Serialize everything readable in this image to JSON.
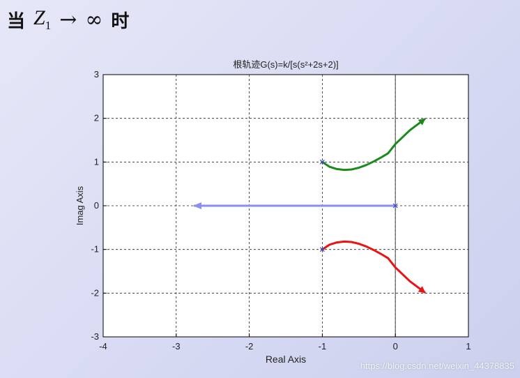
{
  "heading": {
    "prefix": "当",
    "variable": "Z",
    "subscript": "1",
    "arrow": "→",
    "infinity": "∞",
    "suffix": "时"
  },
  "watermark": "https://blog.csdn.net/weixin_44378835",
  "chart_data": {
    "type": "line",
    "title": "根轨迹G(s)=k/[s(s²+2s+2)]",
    "xlabel": "Real Axis",
    "ylabel": "Imag Axis",
    "xlim": [
      -4,
      1
    ],
    "ylim": [
      -3,
      3
    ],
    "xticks": [
      -4,
      -3,
      -2,
      -1,
      0,
      1
    ],
    "yticks": [
      -3,
      -2,
      -1,
      0,
      1,
      2,
      3
    ],
    "grid": true,
    "series": [
      {
        "color": "#1a8a1a",
        "points": [
          [
            -1,
            1
          ],
          [
            -0.9,
            0.89
          ],
          [
            -0.8,
            0.84
          ],
          [
            -0.7,
            0.82
          ],
          [
            -0.6,
            0.83
          ],
          [
            -0.5,
            0.87
          ],
          [
            -0.4,
            0.93
          ],
          [
            -0.3,
            1.01
          ],
          [
            -0.2,
            1.1
          ],
          [
            -0.1,
            1.2
          ],
          [
            0,
            1.41
          ],
          [
            0.1,
            1.57
          ],
          [
            0.2,
            1.73
          ],
          [
            0.4,
            1.98
          ]
        ]
      },
      {
        "color": "#ee1111",
        "points": [
          [
            -1,
            -1
          ],
          [
            -0.9,
            -0.89
          ],
          [
            -0.8,
            -0.84
          ],
          [
            -0.7,
            -0.82
          ],
          [
            -0.6,
            -0.83
          ],
          [
            -0.5,
            -0.87
          ],
          [
            -0.4,
            -0.93
          ],
          [
            -0.3,
            -1.01
          ],
          [
            -0.2,
            -1.1
          ],
          [
            -0.1,
            -1.2
          ],
          [
            0,
            -1.41
          ],
          [
            0.1,
            -1.57
          ],
          [
            0.2,
            -1.73
          ],
          [
            0.4,
            -1.98
          ]
        ]
      },
      {
        "color": "#8a8ef0",
        "points": [
          [
            0,
            0
          ],
          [
            -2.75,
            0
          ]
        ]
      }
    ]
  }
}
